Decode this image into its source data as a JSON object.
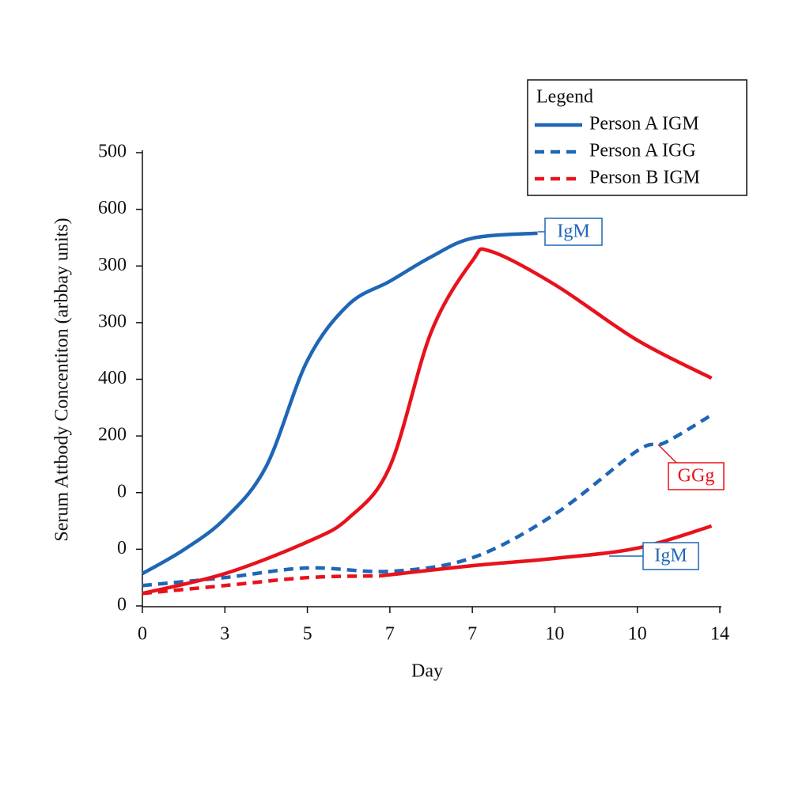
{
  "chart_data": {
    "type": "line",
    "x_label": "Day",
    "y_label": "Serum Attbody Concentiton (arbbay units)",
    "xlim": [
      0,
      7
    ],
    "ylim": [
      0,
      8
    ],
    "xticks": [
      {
        "value": 0,
        "label": "0"
      },
      {
        "value": 1,
        "label": "3"
      },
      {
        "value": 2,
        "label": "5"
      },
      {
        "value": 3,
        "label": "7"
      },
      {
        "value": 4,
        "label": "7"
      },
      {
        "value": 5,
        "label": "10"
      },
      {
        "value": 6,
        "label": "10"
      },
      {
        "value": 7,
        "label": "14"
      }
    ],
    "yticks": [
      {
        "value": 0,
        "label": "0"
      },
      {
        "value": 1,
        "label": "0"
      },
      {
        "value": 2,
        "label": "0"
      },
      {
        "value": 3,
        "label": "200"
      },
      {
        "value": 4,
        "label": "400"
      },
      {
        "value": 5,
        "label": "300"
      },
      {
        "value": 6,
        "label": "300"
      },
      {
        "value": 7,
        "label": "600"
      },
      {
        "value": 8,
        "label": "500"
      }
    ],
    "legend_title": "Legend",
    "series": [
      {
        "name": "Person A IGM",
        "color": "#1f66b5",
        "dash": false,
        "x": [
          0,
          0.5,
          1,
          1.5,
          2,
          2.5,
          3,
          3.5,
          4,
          4.79
        ],
        "values": [
          0.57,
          0.99,
          1.54,
          2.46,
          4.33,
          5.32,
          5.73,
          6.16,
          6.49,
          6.58
        ]
      },
      {
        "name": "Person A IGG",
        "color": "#1f66b5",
        "dash": true,
        "x": [
          0,
          1,
          2,
          3,
          4,
          5,
          6,
          6.33,
          6.9
        ],
        "values": [
          0.36,
          0.5,
          0.67,
          0.61,
          0.85,
          1.62,
          2.74,
          2.88,
          3.37
        ]
      },
      {
        "name": "Person B IGM",
        "color": "#e8121c",
        "dash": true,
        "x": [
          0,
          1,
          2,
          2.88
        ],
        "values": [
          0.22,
          0.36,
          0.5,
          0.53
        ]
      },
      {
        "color": "#e8121c",
        "dash": false,
        "x": [
          0,
          1,
          2,
          2.5,
          3,
          3.5,
          4,
          4.22,
          5,
          6,
          6.9
        ],
        "values": [
          0.22,
          0.57,
          1.13,
          1.55,
          2.46,
          4.83,
          6.09,
          6.26,
          5.67,
          4.69,
          4.02
        ]
      },
      {
        "color": "#e8121c",
        "dash": false,
        "x": [
          2.88,
          4,
          5,
          6,
          6.9
        ],
        "values": [
          0.53,
          0.71,
          0.84,
          1.02,
          1.41
        ]
      }
    ],
    "annotations": [
      {
        "text": "IgM",
        "color": "#1f66b5"
      },
      {
        "text": "GGg",
        "color": "#e8121c"
      },
      {
        "text": "IgM",
        "color": "#1f66b5"
      }
    ]
  }
}
